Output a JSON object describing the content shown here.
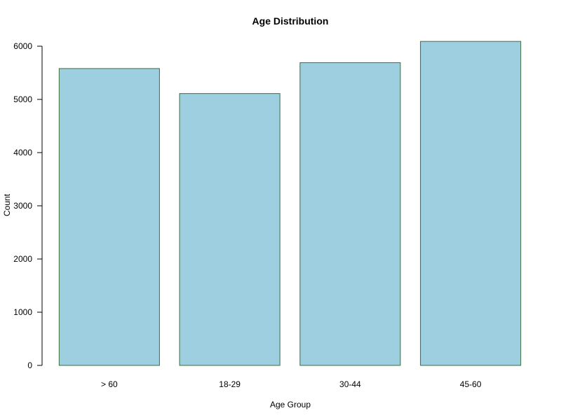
{
  "chart_data": {
    "type": "bar",
    "title": "Age Distribution",
    "xlabel": "Age Group",
    "ylabel": "Count",
    "categories": [
      "> 60",
      "18-29",
      "30-44",
      "45-60"
    ],
    "values": [
      5580,
      5110,
      5690,
      6090
    ],
    "ylim": [
      0,
      6000
    ],
    "yticks": [
      0,
      1000,
      2000,
      3000,
      4000,
      5000,
      6000
    ],
    "ytick_labels": [
      "0",
      "1000",
      "2000",
      "3000",
      "4000",
      "5000",
      "6000"
    ],
    "grid": false,
    "legend": "none"
  },
  "colors": {
    "bar_fill": "#9ecfe0",
    "bar_stroke": "#3c6e3c",
    "axis": "#000000"
  }
}
